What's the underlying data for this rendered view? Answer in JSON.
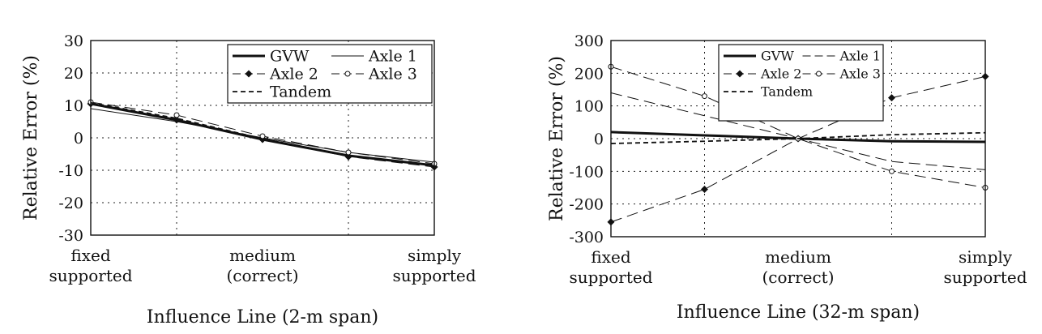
{
  "chart_data": [
    {
      "type": "line",
      "xlabel": "Influence Line (2-m span)",
      "ylabel": "Relative Error (%)",
      "ylim": [
        -30,
        30
      ],
      "yticks": [
        30,
        20,
        10,
        0,
        -10,
        -20,
        -30
      ],
      "xlim": [
        0,
        4
      ],
      "grid": true,
      "legend_placement": "top-right",
      "categories": [
        {
          "x": 0,
          "lines": [
            "fixed",
            "supported"
          ]
        },
        {
          "x": 2,
          "lines": [
            "medium",
            "(correct)"
          ]
        },
        {
          "x": 4,
          "lines": [
            "simply",
            "supported"
          ]
        }
      ],
      "x": [
        0,
        1,
        2,
        3,
        4
      ],
      "series": [
        {
          "name": "GVW",
          "style": "thick",
          "marker": "none",
          "values": [
            10.5,
            5.5,
            -0.5,
            -5.5,
            -8.5
          ]
        },
        {
          "name": "Axle 1",
          "style": "thin",
          "marker": "none",
          "values": [
            9,
            5,
            0,
            -4.5,
            -7.5
          ]
        },
        {
          "name": "Axle 2",
          "style": "longdash",
          "marker": "diamond",
          "values": [
            10.5,
            5.5,
            -0.5,
            -5.8,
            -9
          ]
        },
        {
          "name": "Axle 3",
          "style": "longdash",
          "marker": "circle",
          "values": [
            11,
            7,
            0.5,
            -4.5,
            -8
          ]
        },
        {
          "name": "Tandem",
          "style": "shortdash",
          "marker": "none",
          "values": [
            10.8,
            6,
            -0.3,
            -5.5,
            -8.5
          ]
        }
      ]
    },
    {
      "type": "line",
      "xlabel": "Influence Line (32-m span)",
      "ylabel": "Relative Error (%)",
      "ylim": [
        -300,
        300
      ],
      "yticks": [
        300,
        200,
        100,
        0,
        -100,
        -200,
        -300
      ],
      "xlim": [
        0,
        4
      ],
      "grid": true,
      "legend_placement": "top-left",
      "categories": [
        {
          "x": 0,
          "lines": [
            "fixed",
            "supported"
          ]
        },
        {
          "x": 2,
          "lines": [
            "medium",
            "(correct)"
          ]
        },
        {
          "x": 4,
          "lines": [
            "simply",
            "supported"
          ]
        }
      ],
      "x": [
        0,
        1,
        2,
        3,
        4
      ],
      "series": [
        {
          "name": "GVW",
          "style": "thick",
          "marker": "none",
          "values": [
            20,
            10,
            0,
            -8,
            -10
          ]
        },
        {
          "name": "Axle 1",
          "style": "longdash",
          "marker": "none",
          "values": [
            140,
            70,
            0,
            -70,
            -95
          ]
        },
        {
          "name": "Axle 2",
          "style": "longdash",
          "marker": "diamond",
          "values": [
            -255,
            -155,
            0,
            125,
            190
          ]
        },
        {
          "name": "Axle 3",
          "style": "longdash",
          "marker": "circle",
          "values": [
            220,
            130,
            0,
            -100,
            -150
          ]
        },
        {
          "name": "Tandem",
          "style": "shortdash",
          "marker": "none",
          "values": [
            -15,
            -8,
            0,
            12,
            18
          ]
        }
      ]
    }
  ]
}
